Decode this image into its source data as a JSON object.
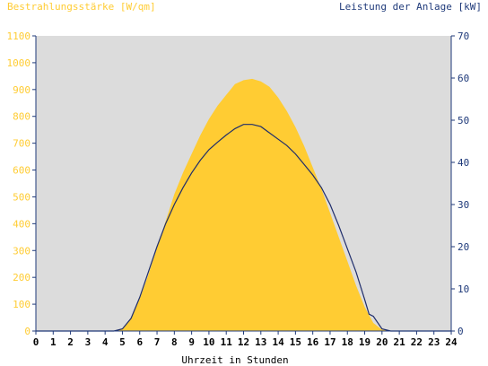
{
  "chart_data": {
    "type": "area",
    "left_axis_label": "Bestrahlungsstärke [W/qm]",
    "right_axis_label": "Leistung der Anlage [kW]",
    "xlabel": "Uhrzeit in Stunden",
    "xlim": [
      0,
      24
    ],
    "ylim_left": [
      0,
      1100
    ],
    "ylim_right": [
      0,
      70
    ],
    "x_ticks": [
      "0",
      "1",
      "2",
      "3",
      "4",
      "5",
      "6",
      "7",
      "8",
      "9",
      "10",
      "11",
      "12",
      "13",
      "14",
      "15",
      "16",
      "17",
      "18",
      "19",
      "20",
      "21",
      "22",
      "23",
      "24"
    ],
    "y_left_ticks": [
      "0",
      "100",
      "200",
      "300",
      "400",
      "500",
      "600",
      "700",
      "800",
      "900",
      "1000",
      "1100"
    ],
    "y_right_ticks": [
      "0",
      "10",
      "20",
      "30",
      "40",
      "50",
      "60",
      "70"
    ],
    "colors": {
      "irradiance": "#ffcc33",
      "power": "#1f2d6b",
      "plot_background": "#dcdcdc",
      "left_axis_text": "#ffcc33",
      "right_axis_text": "#1f3a7a",
      "x_axis_text": "#000000"
    },
    "grid": false,
    "series": [
      {
        "axis": "left",
        "style": "area",
        "x": [
          4.5,
          5,
          5.5,
          6,
          6.5,
          7,
          7.5,
          8,
          8.5,
          9,
          9.5,
          10,
          10.5,
          11,
          11.5,
          12,
          12.5,
          13,
          13.5,
          14,
          14.5,
          15,
          15.5,
          16,
          16.5,
          17,
          17.5,
          18,
          18.5,
          19,
          19.5,
          20,
          20.5
        ],
        "y": [
          0,
          10,
          50,
          120,
          210,
          310,
          410,
          510,
          590,
          660,
          730,
          790,
          840,
          880,
          920,
          935,
          940,
          930,
          910,
          870,
          820,
          760,
          690,
          610,
          530,
          440,
          350,
          260,
          170,
          90,
          30,
          5,
          0
        ]
      },
      {
        "axis": "right",
        "style": "line",
        "x": [
          4.5,
          5,
          5.5,
          6,
          6.5,
          7,
          7.5,
          8,
          8.5,
          9,
          9.5,
          10,
          10.5,
          11,
          11.5,
          12,
          12.5,
          13,
          13.5,
          14,
          14.5,
          15,
          15.5,
          16,
          16.5,
          17,
          17.5,
          18,
          18.5,
          19,
          19.25,
          19.5,
          20,
          20.5,
          21
        ],
        "y": [
          0,
          0.5,
          3,
          8,
          14,
          20,
          25.5,
          30,
          34,
          37.5,
          40.5,
          43,
          44.8,
          46.5,
          48,
          49,
          49,
          48.5,
          47,
          45.5,
          44,
          42,
          39.5,
          37,
          34,
          30,
          25,
          19.5,
          14,
          7.5,
          4,
          3.5,
          0.5,
          0,
          0
        ]
      }
    ]
  }
}
